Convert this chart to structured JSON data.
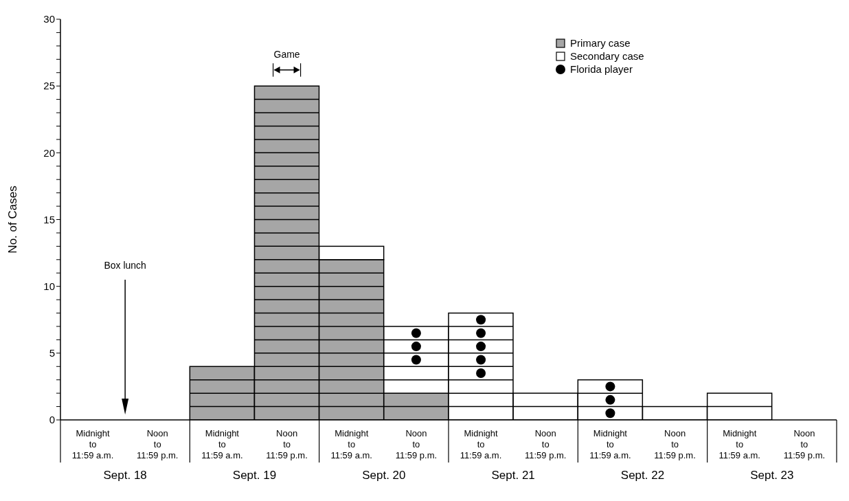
{
  "chart_data": {
    "type": "bar",
    "stacked": true,
    "ylabel": "No. of Cases",
    "categories": [
      "Midnight\nto\n11:59 a.m.",
      "Noon\nto\n11:59 p.m.",
      "Midnight\nto\n11:59 a.m.",
      "Noon\nto\n11:59 p.m.",
      "Midnight\nto\n11:59 a.m.",
      "Noon\nto\n11:59 p.m.",
      "Midnight\nto\n11:59 a.m.",
      "Noon\nto\n11:59 p.m.",
      "Midnight\nto\n11:59 a.m.",
      "Noon\nto\n11:59 p.m.",
      "Midnight\nto\n11:59 a.m.",
      "Noon\nto\n11:59 p.m."
    ],
    "series": [
      {
        "name": "Primary case",
        "color": "#a6a6a6",
        "values": [
          0,
          0,
          4,
          25,
          12,
          2,
          0,
          0,
          0,
          0,
          0,
          0
        ]
      },
      {
        "name": "Secondary case",
        "color": "#ffffff",
        "values": [
          0,
          0,
          0,
          0,
          1,
          5,
          8,
          2,
          3,
          1,
          2,
          0
        ]
      },
      {
        "name": "Florida player",
        "type": "scatter",
        "color": "#000000",
        "values": [
          null,
          null,
          null,
          null,
          null,
          4.5,
          3.5,
          null,
          0.5,
          null,
          null,
          null
        ]
      },
      {
        "type": "scatter",
        "color": "#000000",
        "values": [
          null,
          null,
          null,
          null,
          null,
          5.5,
          4.5,
          null,
          1.5,
          null,
          null,
          null
        ]
      },
      {
        "type": "scatter",
        "color": "#000000",
        "values": [
          null,
          null,
          null,
          null,
          null,
          6.5,
          5.5,
          null,
          2.5,
          null,
          null,
          null
        ]
      },
      {
        "type": "scatter",
        "color": "#000000",
        "values": [
          null,
          null,
          null,
          null,
          null,
          null,
          6.5,
          null,
          null,
          null,
          null,
          null
        ]
      },
      {
        "type": "scatter",
        "color": "#000000",
        "values": [
          null,
          null,
          null,
          null,
          null,
          null,
          7.5,
          null,
          null,
          null,
          null,
          null
        ]
      }
    ],
    "ylim": [
      0,
      30
    ],
    "yticks": [
      0,
      {
        "value": 1,
        "label": null
      },
      {
        "value": 2,
        "label": null
      },
      {
        "value": 3,
        "label": null
      },
      {
        "value": 4,
        "label": null
      },
      5,
      {
        "value": 6,
        "label": null
      },
      {
        "value": 7,
        "label": null
      },
      {
        "value": 8,
        "label": null
      },
      {
        "value": 9,
        "label": null
      },
      10,
      {
        "value": 11,
        "label": null
      },
      {
        "value": 12,
        "label": null
      },
      {
        "value": 13,
        "label": null
      },
      {
        "value": 14,
        "label": null
      },
      15,
      {
        "value": 16,
        "label": null
      },
      {
        "value": 17,
        "label": null
      },
      {
        "value": 18,
        "label": null
      },
      {
        "value": 19,
        "label": null
      },
      20,
      {
        "value": 21,
        "label": null
      },
      {
        "value": 22,
        "label": null
      },
      {
        "value": 23,
        "label": null
      },
      {
        "value": 24,
        "label": null
      },
      25,
      {
        "value": 26,
        "label": null
      },
      {
        "value": 27,
        "label": null
      },
      {
        "value": 28,
        "label": null
      },
      {
        "value": 29,
        "label": null
      },
      30
    ],
    "marker": "circle",
    "legend": "top right",
    "annotations": [
      "Box lunch",
      "Game",
      "Sept. 18",
      "Sept. 19",
      "Sept. 20",
      "Sept. 21",
      "Sept. 22",
      "Sept. 23"
    ]
  }
}
